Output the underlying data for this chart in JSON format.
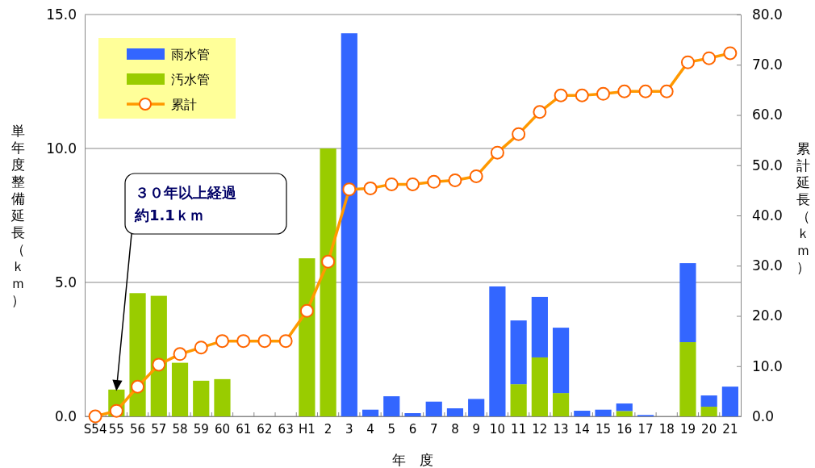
{
  "chart_data": {
    "type": "bar",
    "stacked": true,
    "xlabel": "年　度",
    "ylabel": "単年度整備延長（ｋｍ）",
    "y2label": "累計延長（ｋｍ）",
    "categories": [
      "S54",
      "55",
      "56",
      "57",
      "58",
      "59",
      "60",
      "61",
      "62",
      "63",
      "H1",
      "2",
      "3",
      "4",
      "5",
      "6",
      "7",
      "8",
      "9",
      "10",
      "11",
      "12",
      "13",
      "14",
      "15",
      "16",
      "17",
      "18",
      "19",
      "20",
      "21"
    ],
    "series": [
      {
        "name": "汚水管",
        "type": "bar",
        "color": "#99cc00",
        "values": [
          null,
          1.0,
          4.6,
          4.5,
          2.0,
          1.33,
          1.39,
          0,
          0,
          0,
          5.9,
          10.0,
          0,
          0,
          0,
          0,
          0,
          0,
          0,
          0,
          1.2,
          2.2,
          0.87,
          0,
          0,
          0.2,
          0,
          0,
          2.77,
          0.36,
          0
        ]
      },
      {
        "name": "雨水管",
        "type": "bar",
        "color": "#3366ff",
        "values": [
          0,
          0,
          0,
          0,
          0,
          0,
          0,
          0,
          0,
          0,
          0,
          0,
          14.3,
          0.25,
          0.75,
          0.12,
          0.55,
          0.3,
          0.65,
          4.85,
          2.38,
          2.26,
          2.44,
          0.21,
          0.25,
          0.28,
          0.05,
          0,
          2.95,
          0.42,
          1.11
        ]
      },
      {
        "name": "累計",
        "type": "line",
        "axis": "y2",
        "color": "#ff9900",
        "marker": "circle",
        "values": [
          0,
          1.1,
          5.9,
          10.3,
          12.4,
          13.7,
          15.0,
          15.0,
          15.0,
          15.0,
          21.0,
          30.8,
          45.2,
          45.4,
          46.2,
          46.2,
          46.7,
          47.0,
          47.8,
          52.5,
          56.2,
          60.6,
          63.9,
          63.9,
          64.2,
          64.7,
          64.7,
          64.7,
          70.5,
          71.3,
          72.3
        ]
      }
    ],
    "ylim": [
      0,
      15
    ],
    "yticks": [
      {
        "value": 0,
        "label": "0.0"
      },
      {
        "value": 5,
        "label": "5.0"
      },
      {
        "value": 10,
        "label": "10.0"
      },
      {
        "value": 15,
        "label": "15.0"
      }
    ],
    "y2lim": [
      0,
      80
    ],
    "y2ticks": [
      {
        "value": 0,
        "label": "0.0"
      },
      {
        "value": 10,
        "label": "10.0"
      },
      {
        "value": 20,
        "label": "20.0"
      },
      {
        "value": 30,
        "label": "30.0"
      },
      {
        "value": 40,
        "label": "40.0"
      },
      {
        "value": 50,
        "label": "50.0"
      },
      {
        "value": 60,
        "label": "60.0"
      },
      {
        "value": 70,
        "label": "70.0"
      },
      {
        "value": 80,
        "label": "80.0"
      }
    ],
    "grid": "y",
    "legend": "top left",
    "annotations": [
      {
        "text": "３０年以上経過約1.1ｋｍ",
        "x": "55",
        "y": 1.0
      }
    ]
  }
}
